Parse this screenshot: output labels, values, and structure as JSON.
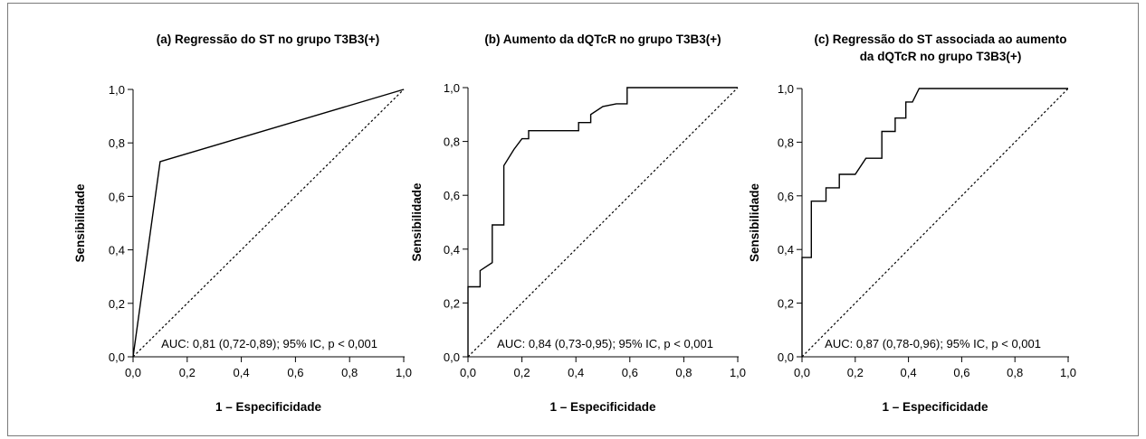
{
  "chart_data": [
    {
      "type": "line",
      "title": [
        "(a) Regressão do ST no grupo T3B3(+)"
      ],
      "xlabel": "1 – Especificidade",
      "ylabel": "Sensibilidade",
      "xlim": [
        0,
        1
      ],
      "ylim": [
        0,
        1
      ],
      "xticks": [
        "0,0",
        "0,2",
        "0,4",
        "0,6",
        "0,8",
        "1,0"
      ],
      "yticks": [
        "0,0",
        "0,2",
        "0,4",
        "0,6",
        "0,8",
        "1,0"
      ],
      "annotation": "AUC: 0,81 (0,72-0,89); 95% IC, p < 0,001",
      "series": [
        {
          "style": "solid",
          "x": [
            0,
            0.1,
            1.0
          ],
          "y": [
            0,
            0.73,
            1.0
          ]
        },
        {
          "style": "dotted",
          "x": [
            0,
            1
          ],
          "y": [
            0,
            1
          ]
        }
      ]
    },
    {
      "type": "line",
      "title": [
        "(b) Aumento da dQTcR no grupo T3B3(+)"
      ],
      "xlabel": "1 – Especificidade",
      "ylabel": "Sensibilidade",
      "xlim": [
        0,
        1
      ],
      "ylim": [
        0,
        1
      ],
      "xticks": [
        "0,0",
        "0,2",
        "0,4",
        "0,6",
        "0,8",
        "1,0"
      ],
      "yticks": [
        "0,0",
        "0,2",
        "0,4",
        "0,6",
        "0,8",
        "1,0"
      ],
      "annotation": "AUC: 0,84 (0,73-0,95); 95% IC, p < 0,001",
      "series": [
        {
          "style": "solid",
          "x": [
            0,
            0,
            0.045,
            0.045,
            0.09,
            0.09,
            0.133,
            0.133,
            0.17,
            0.2,
            0.225,
            0.225,
            0.41,
            0.41,
            0.455,
            0.455,
            0.5,
            0.55,
            0.59,
            0.59,
            1.0
          ],
          "y": [
            0,
            0.26,
            0.26,
            0.32,
            0.35,
            0.49,
            0.49,
            0.71,
            0.77,
            0.81,
            0.81,
            0.84,
            0.84,
            0.87,
            0.87,
            0.9,
            0.93,
            0.94,
            0.94,
            1.0,
            1.0
          ]
        },
        {
          "style": "dotted",
          "x": [
            0,
            1
          ],
          "y": [
            0,
            1
          ]
        }
      ]
    },
    {
      "type": "line",
      "title": [
        "(c) Regressão do ST associada ao aumento",
        "da dQTcR no grupo T3B3(+)"
      ],
      "xlabel": "1 – Especificidade",
      "ylabel": "Sensibilidade",
      "xlim": [
        0,
        1
      ],
      "ylim": [
        0,
        1
      ],
      "xticks": [
        "0,0",
        "0,2",
        "0,4",
        "0,6",
        "0,8",
        "1,0"
      ],
      "yticks": [
        "0,0",
        "0,2",
        "0,4",
        "0,6",
        "0,8",
        "1,0"
      ],
      "annotation": "AUC: 0,87 (0,78-0,96); 95% IC, p < 0,001",
      "series": [
        {
          "style": "solid",
          "x": [
            0,
            0,
            0.035,
            0.035,
            0.09,
            0.09,
            0.14,
            0.14,
            0.2,
            0.24,
            0.3,
            0.3,
            0.35,
            0.35,
            0.39,
            0.39,
            0.415,
            0.44,
            1.0
          ],
          "y": [
            0,
            0.37,
            0.37,
            0.58,
            0.58,
            0.63,
            0.63,
            0.68,
            0.68,
            0.74,
            0.74,
            0.84,
            0.84,
            0.89,
            0.89,
            0.95,
            0.95,
            1.0,
            1.0
          ]
        },
        {
          "style": "dotted",
          "x": [
            0,
            1
          ],
          "y": [
            0,
            1
          ]
        }
      ]
    }
  ]
}
